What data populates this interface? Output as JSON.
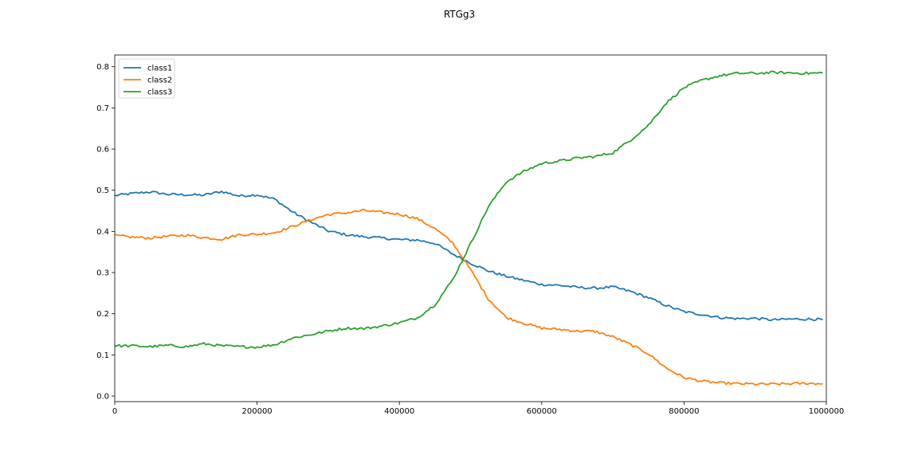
{
  "chart_data": {
    "type": "line",
    "title": "RTGg3",
    "xlabel": "",
    "ylabel": "",
    "xlim": [
      0,
      1000000
    ],
    "ylim": [
      -0.0135,
      0.8285
    ],
    "xticks": [
      0,
      200000,
      400000,
      600000,
      800000,
      1000000
    ],
    "xtick_labels": [
      "0",
      "200000",
      "400000",
      "600000",
      "800000",
      "1000000"
    ],
    "yticks": [
      0.0,
      0.1,
      0.2,
      0.3,
      0.4,
      0.5,
      0.6,
      0.7,
      0.8
    ],
    "ytick_labels": [
      "0.0",
      "0.1",
      "0.2",
      "0.3",
      "0.4",
      "0.5",
      "0.6",
      "0.7",
      "0.8"
    ],
    "grid": false,
    "legend_position": "top-left",
    "x": [
      0,
      25000,
      50000,
      75000,
      100000,
      125000,
      150000,
      175000,
      200000,
      225000,
      250000,
      275000,
      300000,
      325000,
      350000,
      375000,
      400000,
      425000,
      450000,
      475000,
      500000,
      525000,
      550000,
      575000,
      600000,
      625000,
      650000,
      675000,
      700000,
      725000,
      750000,
      775000,
      800000,
      825000,
      850000,
      875000,
      900000,
      925000,
      950000,
      975000,
      995000
    ],
    "series": [
      {
        "name": "class1",
        "color": "#1f77b4",
        "values": [
          0.487,
          0.492,
          0.496,
          0.49,
          0.489,
          0.488,
          0.497,
          0.486,
          0.489,
          0.478,
          0.447,
          0.423,
          0.401,
          0.392,
          0.387,
          0.384,
          0.38,
          0.379,
          0.371,
          0.345,
          0.323,
          0.304,
          0.291,
          0.281,
          0.271,
          0.269,
          0.264,
          0.262,
          0.265,
          0.254,
          0.239,
          0.22,
          0.205,
          0.198,
          0.191,
          0.188,
          0.189,
          0.185,
          0.187,
          0.187,
          0.186
        ]
      },
      {
        "name": "class2",
        "color": "#ff7f0e",
        "values": [
          0.39,
          0.386,
          0.384,
          0.388,
          0.391,
          0.385,
          0.381,
          0.392,
          0.393,
          0.397,
          0.412,
          0.428,
          0.441,
          0.445,
          0.451,
          0.446,
          0.442,
          0.431,
          0.407,
          0.372,
          0.307,
          0.236,
          0.191,
          0.177,
          0.165,
          0.162,
          0.158,
          0.157,
          0.144,
          0.125,
          0.103,
          0.068,
          0.045,
          0.036,
          0.032,
          0.03,
          0.029,
          0.029,
          0.03,
          0.031,
          0.03
        ]
      },
      {
        "name": "class3",
        "color": "#2ca02c",
        "values": [
          0.122,
          0.122,
          0.12,
          0.123,
          0.12,
          0.127,
          0.122,
          0.12,
          0.119,
          0.125,
          0.141,
          0.149,
          0.158,
          0.165,
          0.164,
          0.17,
          0.178,
          0.19,
          0.222,
          0.283,
          0.37,
          0.46,
          0.52,
          0.546,
          0.565,
          0.571,
          0.578,
          0.582,
          0.591,
          0.622,
          0.658,
          0.712,
          0.749,
          0.767,
          0.778,
          0.784,
          0.784,
          0.786,
          0.785,
          0.784,
          0.785
        ]
      }
    ]
  }
}
